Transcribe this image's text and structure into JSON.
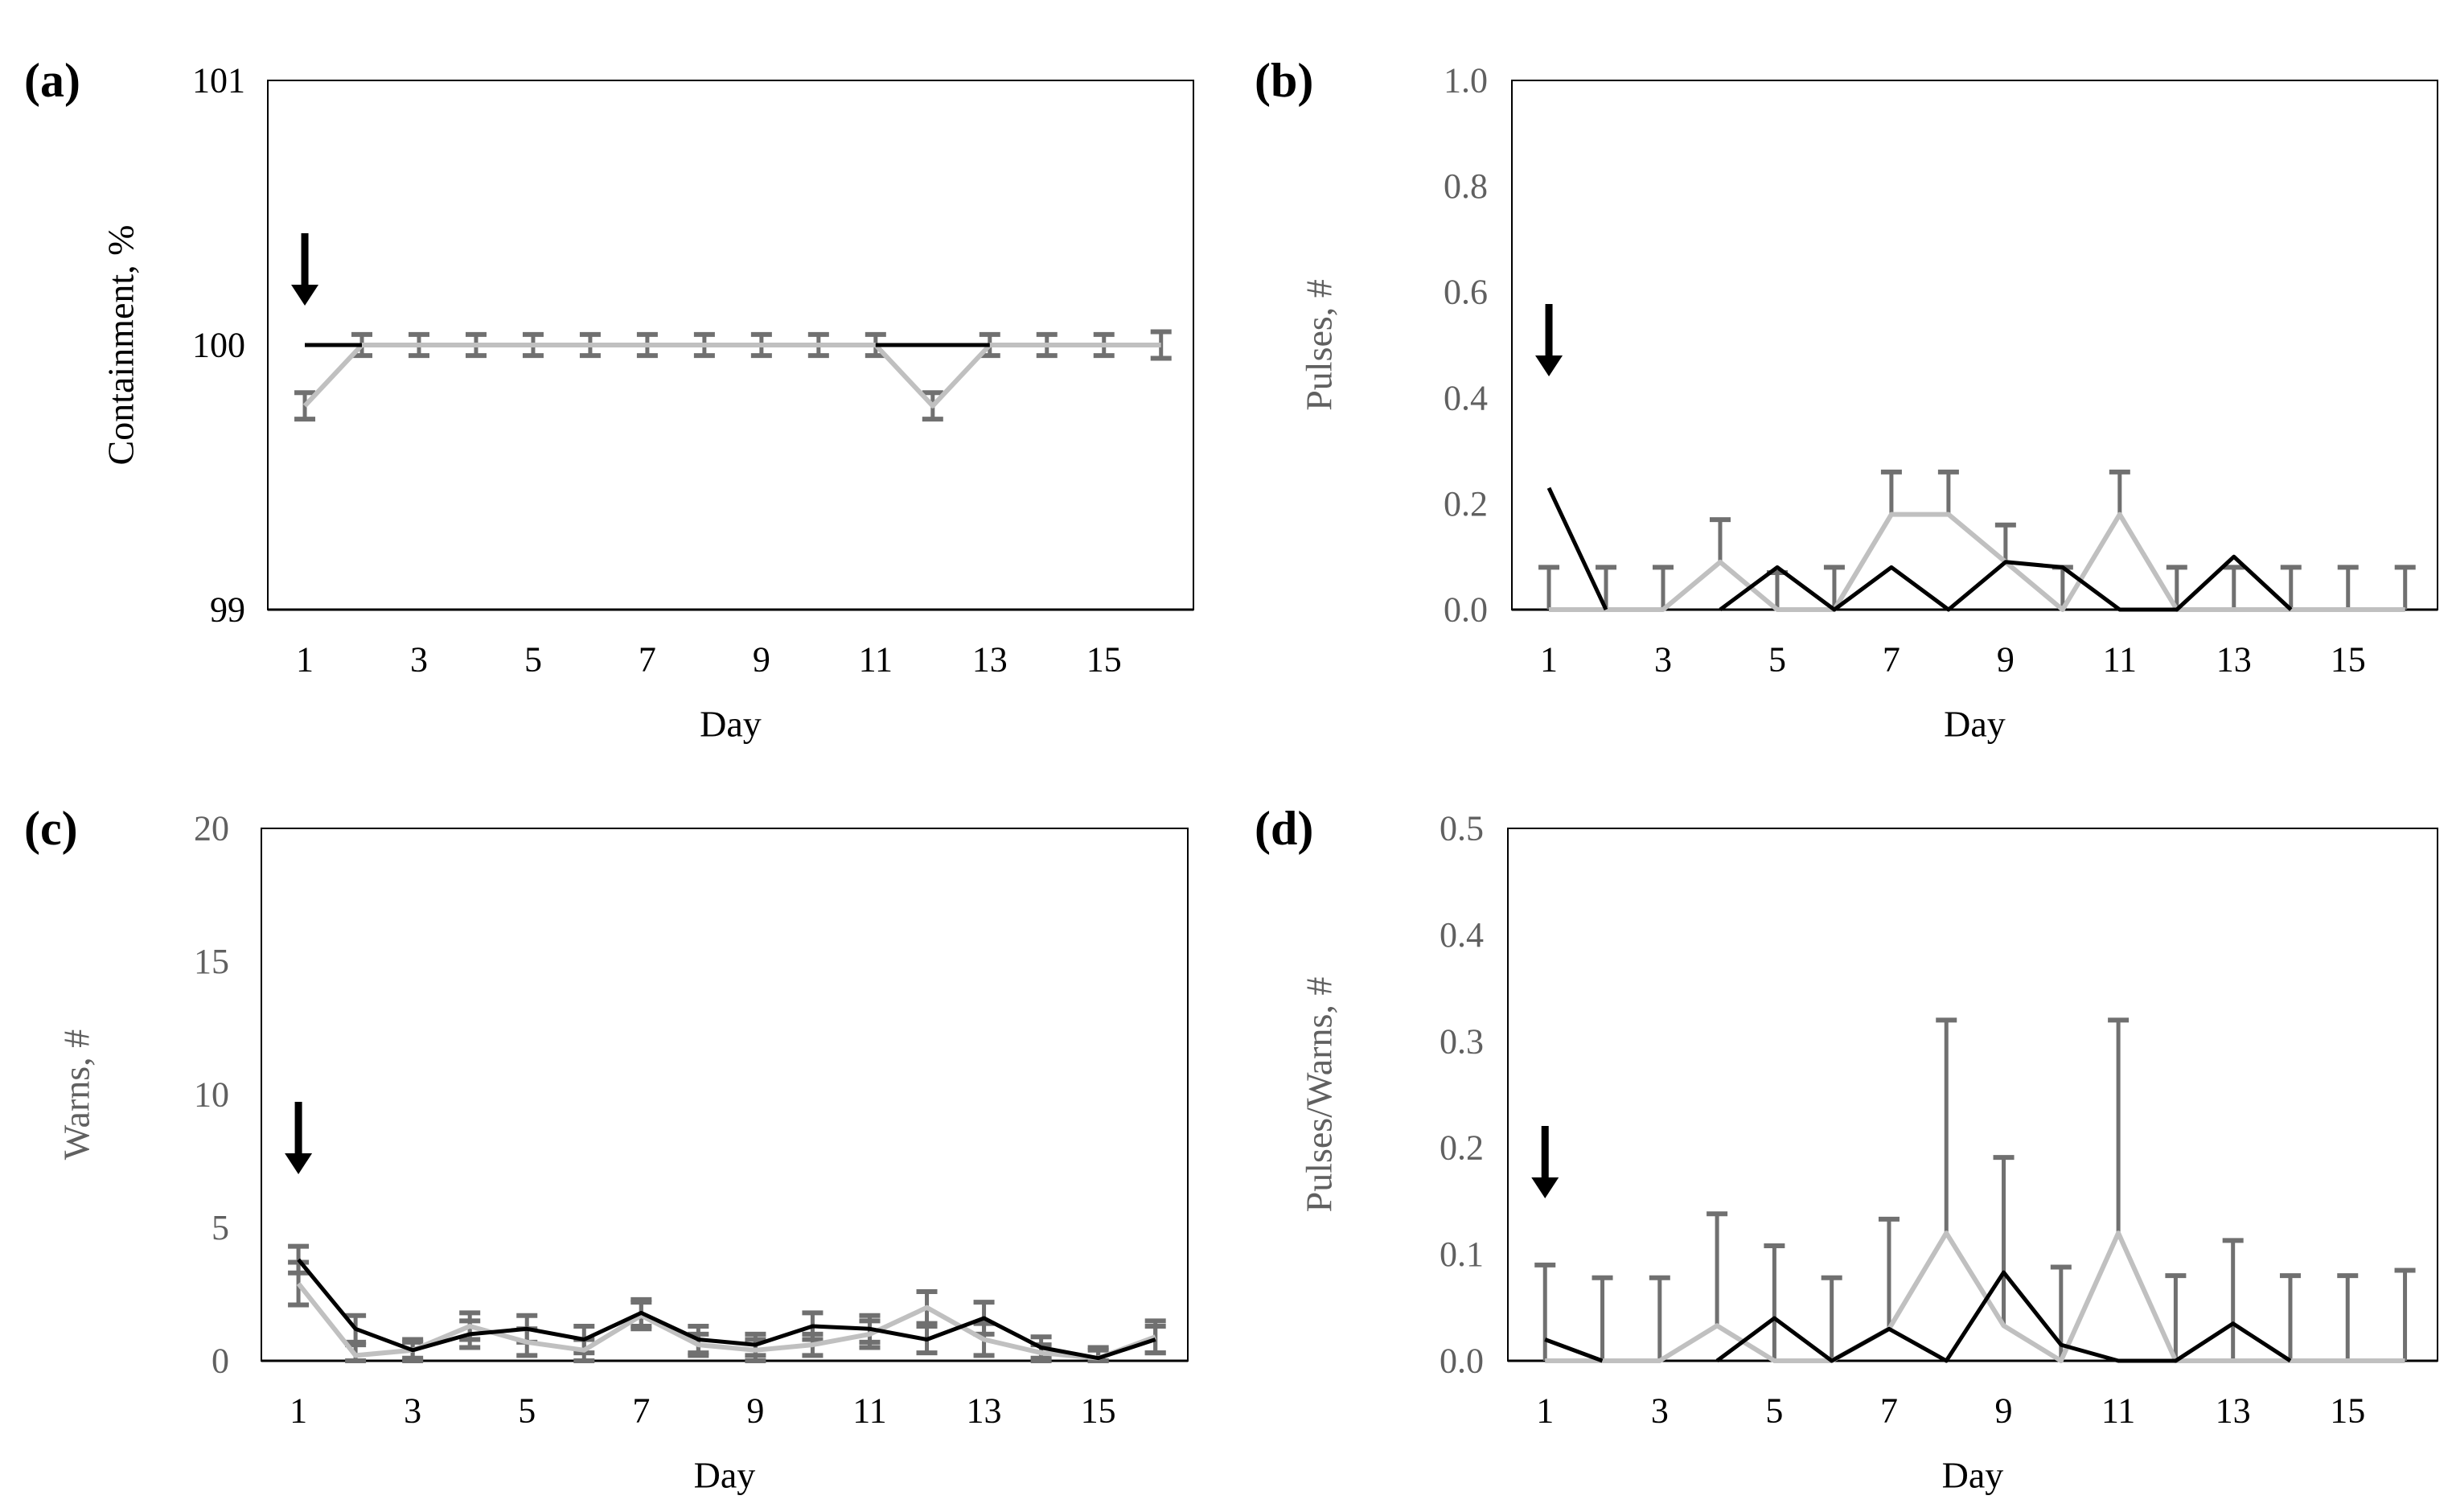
{
  "colors": {
    "series_dark": "#000000",
    "series_light": "#c0c0c0",
    "error_bar": "#707070",
    "axis": "#000000",
    "frame": "#000000",
    "tick_label": "#000000",
    "ytick_label_gray": "#606060"
  },
  "chart_data": [
    {
      "panel_label": "(a)",
      "type": "line",
      "xlabel": "Day",
      "ylabel": "Containment, %",
      "ylim": [
        99,
        101
      ],
      "yticks": [
        "99",
        "100",
        "101"
      ],
      "ytick_values": [
        99,
        100,
        101
      ],
      "xticks": [
        "1",
        "3",
        "5",
        "7",
        "9",
        "11",
        "13",
        "15"
      ],
      "xtick_values": [
        1,
        3,
        5,
        7,
        9,
        11,
        13,
        15
      ],
      "x": [
        1,
        2,
        3,
        4,
        5,
        6,
        7,
        8,
        9,
        10,
        11,
        12,
        13,
        14,
        15,
        16
      ],
      "arrow_day": 1,
      "series": [
        {
          "name": "dark",
          "color_key": "series_dark",
          "values": [
            100,
            100,
            null,
            null,
            null,
            null,
            null,
            null,
            null,
            null,
            100,
            100,
            100,
            null,
            null,
            null
          ]
        },
        {
          "name": "light",
          "color_key": "series_light",
          "values": [
            99.77,
            100,
            100,
            100,
            100,
            100,
            100,
            100,
            100,
            100,
            100,
            99.77,
            100,
            100,
            100,
            100
          ],
          "errors": [
            0.05,
            0.04,
            0.04,
            0.04,
            0.04,
            0.04,
            0.04,
            0.04,
            0.04,
            0.04,
            0.04,
            0.05,
            0.04,
            0.04,
            0.04,
            0.05
          ]
        }
      ]
    },
    {
      "panel_label": "(b)",
      "type": "line",
      "xlabel": "Day",
      "ylabel": "Pulses, #",
      "ylim": [
        0,
        1.0
      ],
      "yticks": [
        "0.0",
        "0.2",
        "0.4",
        "0.6",
        "0.8",
        "1.0"
      ],
      "ytick_values": [
        0,
        0.2,
        0.4,
        0.6,
        0.8,
        1.0
      ],
      "xticks": [
        "1",
        "3",
        "5",
        "7",
        "9",
        "11",
        "13",
        "15"
      ],
      "xtick_values": [
        1,
        3,
        5,
        7,
        9,
        11,
        13,
        15
      ],
      "x": [
        1,
        2,
        3,
        4,
        5,
        6,
        7,
        8,
        9,
        10,
        11,
        12,
        13,
        14,
        15,
        16
      ],
      "arrow_day": 1,
      "series": [
        {
          "name": "dark",
          "color_key": "series_dark",
          "values": [
            0.23,
            0,
            null,
            0,
            0.08,
            0,
            0.08,
            0,
            0.09,
            0.08,
            0,
            0,
            0.1,
            0,
            null,
            null
          ]
        },
        {
          "name": "light",
          "color_key": "series_light",
          "values": [
            0,
            0,
            0,
            0.09,
            0,
            0,
            0.18,
            0.18,
            0.09,
            0,
            0.18,
            0,
            0,
            0,
            0,
            0
          ],
          "errors": [
            0.08,
            0.08,
            0.08,
            0.08,
            0.07,
            0.08,
            0.08,
            0.08,
            0.07,
            0.08,
            0.08,
            0.08,
            0.08,
            0.08,
            0.08,
            0.08
          ]
        }
      ]
    },
    {
      "panel_label": "(c)",
      "type": "line",
      "xlabel": "Day",
      "ylabel": "Warns, #",
      "ylim": [
        0,
        20
      ],
      "yticks": [
        "0",
        "5",
        "10",
        "15",
        "20"
      ],
      "ytick_values": [
        0,
        5,
        10,
        15,
        20
      ],
      "xticks": [
        "1",
        "3",
        "5",
        "7",
        "9",
        "11",
        "13",
        "15"
      ],
      "xtick_values": [
        1,
        3,
        5,
        7,
        9,
        11,
        13,
        15
      ],
      "x": [
        1,
        2,
        3,
        4,
        5,
        6,
        7,
        8,
        9,
        10,
        11,
        12,
        13,
        14,
        15,
        16
      ],
      "arrow_day": 1,
      "series": [
        {
          "name": "dark",
          "color_key": "series_dark",
          "values": [
            3.8,
            1.2,
            0.4,
            1.0,
            1.2,
            0.8,
            1.8,
            0.8,
            0.6,
            1.3,
            1.2,
            0.8,
            1.6,
            0.5,
            0.1,
            0.8
          ],
          "errors": [
            0.5,
            0.5,
            0.4,
            0.5,
            0.5,
            0.5,
            0.5,
            0.5,
            0.4,
            0.5,
            0.5,
            0.5,
            0.6,
            0.4,
            0.4,
            0.5
          ]
        },
        {
          "name": "light",
          "color_key": "series_light",
          "values": [
            2.9,
            0.2,
            0.4,
            1.3,
            0.7,
            0.4,
            1.7,
            0.6,
            0.4,
            0.6,
            1.0,
            2.0,
            0.8,
            0.3,
            0.1,
            0.9
          ],
          "errors": [
            0.8,
            0.4,
            0.3,
            0.5,
            0.5,
            0.4,
            0.5,
            0.4,
            0.4,
            0.4,
            0.5,
            0.6,
            0.6,
            0.3,
            0.3,
            0.6
          ]
        }
      ]
    },
    {
      "panel_label": "(d)",
      "type": "line",
      "xlabel": "Day",
      "ylabel": "Pulses/Warns, #",
      "ylim": [
        0,
        0.5
      ],
      "yticks": [
        "0.0",
        "0.1",
        "0.2",
        "0.3",
        "0.4",
        "0.5"
      ],
      "ytick_values": [
        0,
        0.1,
        0.2,
        0.3,
        0.4,
        0.5
      ],
      "xticks": [
        "1",
        "3",
        "5",
        "7",
        "9",
        "11",
        "13",
        "15"
      ],
      "xtick_values": [
        1,
        3,
        5,
        7,
        9,
        11,
        13,
        15
      ],
      "x": [
        1,
        2,
        3,
        4,
        5,
        6,
        7,
        8,
        9,
        10,
        11,
        12,
        13,
        14,
        15,
        16
      ],
      "arrow_day": 1,
      "series": [
        {
          "name": "dark",
          "color_key": "series_dark",
          "values": [
            0.02,
            0,
            null,
            0,
            0.04,
            0,
            0.03,
            0,
            0.083,
            0.015,
            0,
            0,
            0.035,
            0,
            null,
            null
          ]
        },
        {
          "name": "light",
          "color_key": "series_light",
          "values": [
            0,
            0,
            0,
            0.033,
            0,
            0,
            0.03,
            0.12,
            0.033,
            0,
            0.12,
            0,
            0,
            0,
            0,
            0
          ],
          "errors": [
            0.09,
            0.078,
            0.078,
            0.105,
            0.108,
            0.078,
            0.103,
            0.2,
            0.158,
            0.088,
            0.2,
            0.08,
            0.113,
            0.08,
            0.08,
            0.085
          ]
        }
      ]
    }
  ]
}
